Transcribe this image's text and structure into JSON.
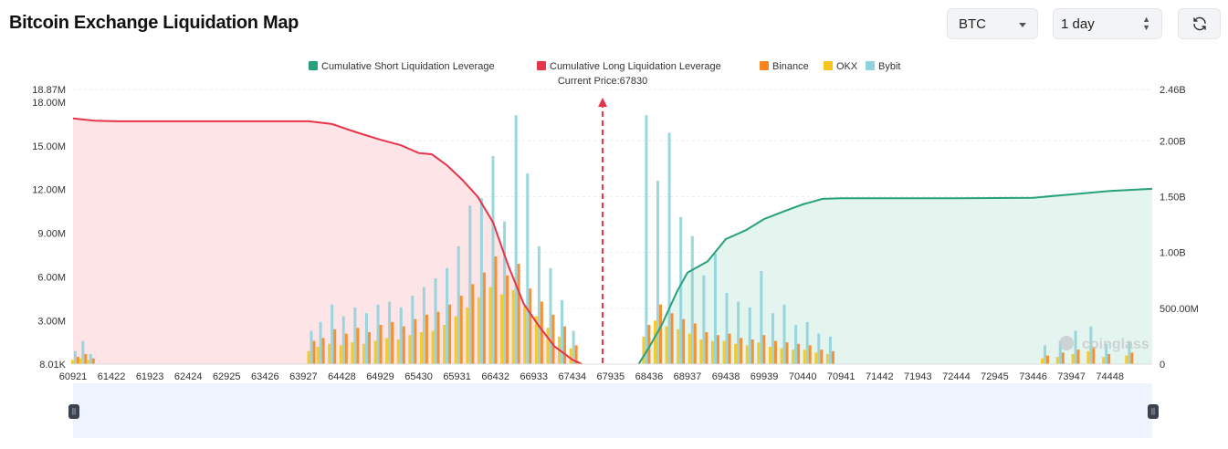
{
  "header": {
    "title": "Bitcoin Exchange Liquidation Map"
  },
  "controls": {
    "coin": "BTC",
    "range": "1 day",
    "refresh_icon": "refresh-icon"
  },
  "watermark": "coinglass",
  "colors": {
    "short": "#26a17b",
    "long": "#e6354a",
    "binance": "#f7851d",
    "okx": "#f5c518",
    "bybit": "#8fd3dc",
    "long_fill": "#fce4e7",
    "short_fill": "#e4f5ef"
  },
  "chart_data": {
    "type": "bar",
    "title": "Bitcoin Exchange Liquidation Map",
    "current_price_label": "Current Price:67830",
    "current_price": 67830,
    "legend_position": "top-center",
    "legend": [
      "Cumulative Short Liquidation Leverage",
      "Cumulative Long Liquidation Leverage",
      "Binance",
      "OKX",
      "Bybit"
    ],
    "x_ticks": [
      60921,
      61422,
      61923,
      62424,
      62925,
      63426,
      63927,
      64428,
      64929,
      65430,
      65931,
      66432,
      66933,
      67434,
      67935,
      68436,
      68937,
      69438,
      69939,
      70440,
      70941,
      71442,
      71943,
      72444,
      72945,
      73446,
      73947,
      74448
    ],
    "xlim": [
      60921,
      75000
    ],
    "y_left": {
      "ticks": [
        "8.01K",
        "3.00M",
        "6.00M",
        "9.00M",
        "12.00M",
        "15.00M",
        "18.00M",
        "18.87M"
      ],
      "ylim": [
        8010,
        18870000
      ]
    },
    "y_right": {
      "ticks": [
        "0",
        "500.00M",
        "1.00B",
        "1.50B",
        "2.00B",
        "2.46B"
      ],
      "ylim": [
        0,
        2460000000
      ]
    },
    "series": [
      {
        "name": "Cumulative Long Liquidation Leverage",
        "axis": "right",
        "x": [
          60921,
          61200,
          61500,
          62000,
          63000,
          64000,
          64300,
          64600,
          64929,
          65200,
          65430,
          65600,
          65800,
          66000,
          66200,
          66400,
          66600,
          66800,
          67000,
          67200,
          67434,
          67560
        ],
        "y": [
          2200000000,
          2180000000,
          2175000000,
          2175000000,
          2175000000,
          2175000000,
          2150000000,
          2080000000,
          2010000000,
          1960000000,
          1890000000,
          1880000000,
          1780000000,
          1650000000,
          1500000000,
          1270000000,
          880000000,
          540000000,
          340000000,
          160000000,
          40000000,
          0
        ]
      },
      {
        "name": "Cumulative Short Liquidation Leverage",
        "axis": "right",
        "x": [
          68300,
          68436,
          68600,
          68800,
          68937,
          69200,
          69438,
          69700,
          69939,
          70200,
          70440,
          70700,
          70941,
          71442,
          72444,
          73446,
          73947,
          74448,
          75000
        ],
        "y": [
          0,
          150000000,
          350000000,
          650000000,
          820000000,
          920000000,
          1120000000,
          1200000000,
          1300000000,
          1370000000,
          1430000000,
          1480000000,
          1485000000,
          1485000000,
          1485000000,
          1490000000,
          1520000000,
          1550000000,
          1570000000
        ]
      },
      {
        "name": "Binance",
        "axis": "left",
        "x": [
          60950,
          61050,
          61150,
          64030,
          64150,
          64300,
          64450,
          64600,
          64750,
          64900,
          65050,
          65200,
          65350,
          65500,
          65650,
          65800,
          65950,
          66100,
          66250,
          66400,
          66550,
          66700,
          66850,
          67000,
          67150,
          67300,
          67450,
          68400,
          68550,
          68700,
          68850,
          69000,
          69150,
          69300,
          69450,
          69600,
          69750,
          69900,
          70050,
          70200,
          70350,
          70500,
          70650,
          70800,
          73600,
          73800,
          74000,
          74200,
          74400,
          74700
        ],
        "y": [
          500000,
          700000,
          400000,
          1600000,
          1800000,
          2400000,
          2100000,
          2500000,
          2200000,
          2700000,
          2900000,
          2600000,
          3100000,
          3400000,
          3600000,
          4100000,
          4700000,
          5500000,
          6300000,
          7400000,
          6100000,
          6900000,
          5200000,
          4300000,
          3400000,
          2600000,
          1300000,
          2700000,
          4100000,
          3500000,
          3100000,
          2800000,
          2200000,
          2000000,
          2100000,
          1800000,
          1700000,
          2000000,
          1600000,
          1500000,
          1400000,
          1300000,
          1000000,
          900000,
          600000,
          800000,
          1000000,
          1200000,
          700000,
          800000
        ]
      },
      {
        "name": "OKX",
        "axis": "left",
        "x": [
          60950,
          61050,
          61150,
          64030,
          64150,
          64300,
          64450,
          64600,
          64750,
          64900,
          65050,
          65200,
          65350,
          65500,
          65650,
          65800,
          65950,
          66100,
          66250,
          66400,
          66550,
          66700,
          66850,
          67000,
          67150,
          67300,
          67450,
          68400,
          68550,
          68700,
          68850,
          69000,
          69150,
          69300,
          69450,
          69600,
          69750,
          69900,
          70050,
          70200,
          70350,
          70500,
          70650,
          70800,
          73600,
          73800,
          74000,
          74200,
          74400,
          74700
        ],
        "y": [
          300000,
          400000,
          300000,
          900000,
          1200000,
          1400000,
          1300000,
          1500000,
          1400000,
          1600000,
          1800000,
          1700000,
          2000000,
          2200000,
          2300000,
          2700000,
          3300000,
          3900000,
          4600000,
          5300000,
          4800000,
          5100000,
          4000000,
          3300000,
          2500000,
          1900000,
          1100000,
          1900000,
          3000000,
          2600000,
          2400000,
          2100000,
          1700000,
          1600000,
          1600000,
          1400000,
          1300000,
          1500000,
          1200000,
          1100000,
          1000000,
          1000000,
          800000,
          700000,
          400000,
          500000,
          700000,
          900000,
          500000,
          600000
        ]
      },
      {
        "name": "Bybit",
        "axis": "left",
        "x": [
          60950,
          61050,
          61150,
          64030,
          64150,
          64300,
          64450,
          64600,
          64750,
          64900,
          65050,
          65200,
          65350,
          65500,
          65650,
          65800,
          65950,
          66100,
          66250,
          66400,
          66550,
          66700,
          66850,
          67000,
          67150,
          67300,
          67450,
          68400,
          68550,
          68700,
          68850,
          69000,
          69150,
          69300,
          69450,
          69600,
          69750,
          69900,
          70050,
          70200,
          70350,
          70500,
          70650,
          70800,
          73600,
          73800,
          74000,
          74200,
          74400,
          74700
        ],
        "y": [
          900000,
          1600000,
          700000,
          2300000,
          2900000,
          4100000,
          3300000,
          3900000,
          3500000,
          4100000,
          4300000,
          3900000,
          4700000,
          5300000,
          5900000,
          6600000,
          8100000,
          10900000,
          11400000,
          14300000,
          9800000,
          17100000,
          13100000,
          8100000,
          6600000,
          4400000,
          2300000,
          17100000,
          12600000,
          15900000,
          10100000,
          8800000,
          6100000,
          7600000,
          4900000,
          4300000,
          3900000,
          6400000,
          3500000,
          4100000,
          2700000,
          2900000,
          2100000,
          1900000,
          1300000,
          1600000,
          2300000,
          2600000,
          1400000,
          1600000
        ]
      }
    ]
  }
}
